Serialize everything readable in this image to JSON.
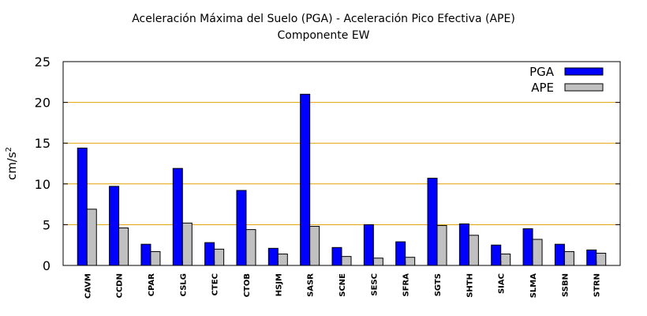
{
  "chart_data": {
    "type": "bar",
    "title": "Aceleración Máxima del Suelo (PGA) -  Aceleración Pico Efectiva (APE)",
    "subtitle": "Componente EW",
    "xlabel": "",
    "ylabel_base": "cm/s",
    "ylabel_exp": "2",
    "ylim": [
      0,
      25
    ],
    "yticks": [
      0,
      5,
      10,
      15,
      20,
      25
    ],
    "grid": true,
    "legend_position": "top-right",
    "categories": [
      "CAVM",
      "CCDN",
      "CPAR",
      "CSLG",
      "CTEC",
      "CTOB",
      "HSJM",
      "SASR",
      "SCNE",
      "SESC",
      "SFRA",
      "SGTS",
      "SHTH",
      "SIAC",
      "SLMA",
      "SSBN",
      "STRN"
    ],
    "series": [
      {
        "name": "PGA",
        "color": "#0000ff",
        "values": [
          14.4,
          9.7,
          2.6,
          11.9,
          2.8,
          9.2,
          2.1,
          21.0,
          2.2,
          5.0,
          2.9,
          10.7,
          5.1,
          2.5,
          4.5,
          2.6,
          1.9
        ]
      },
      {
        "name": "APE",
        "color": "#c0c0c0",
        "values": [
          6.9,
          4.6,
          1.7,
          5.2,
          2.0,
          4.4,
          1.4,
          4.8,
          1.1,
          0.9,
          1.0,
          4.9,
          3.7,
          1.4,
          3.2,
          1.7,
          1.5
        ]
      }
    ],
    "colors": {
      "grid": "#e0a000",
      "axis": "#000000"
    }
  }
}
